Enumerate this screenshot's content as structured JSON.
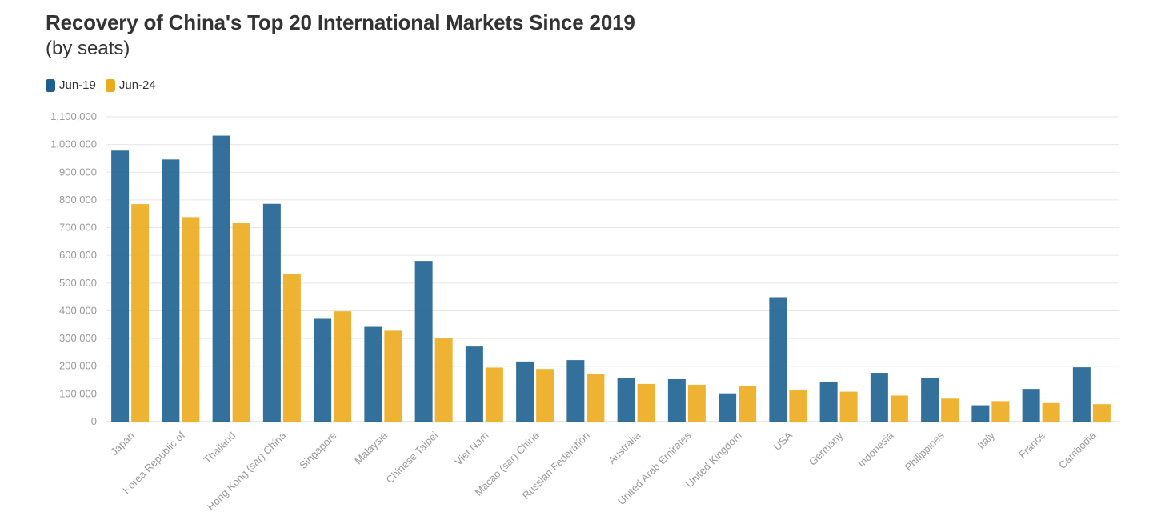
{
  "header": {
    "title": "Recovery of China's Top 20 International Markets Since 2019",
    "subtitle": "(by seats)"
  },
  "chart_data": {
    "type": "bar",
    "title": "Recovery of China's Top 20 International Markets Since 2019",
    "subtitle": "(by seats)",
    "xlabel": "",
    "ylabel": "",
    "ylim": [
      0,
      1100000
    ],
    "yticks": [
      0,
      100000,
      200000,
      300000,
      400000,
      500000,
      600000,
      700000,
      800000,
      900000,
      1000000,
      1100000
    ],
    "ytick_labels": [
      "0",
      "100,000",
      "200,000",
      "300,000",
      "400,000",
      "500,000",
      "600,000",
      "700,000",
      "800,000",
      "900,000",
      "1,000,000",
      "1,100,000"
    ],
    "grid": true,
    "legend_position": "top-left",
    "categories": [
      "Japan",
      "Korea Republic of",
      "Thailand",
      "Hong Kong (sar) China",
      "Singapore",
      "Malaysia",
      "Chinese Taipei",
      "Viet Nam",
      "Macao (sar) China",
      "Russian Federation",
      "Australia",
      "United Arab Emirates",
      "United Kingdom",
      "USA",
      "Germany",
      "Indonesia",
      "Philippines",
      "Italy",
      "France",
      "Cambodia"
    ],
    "series": [
      {
        "name": "Jun-19",
        "color": "#1d6090",
        "values": [
          978000,
          946000,
          1032000,
          786000,
          371000,
          342000,
          580000,
          271000,
          217000,
          222000,
          158000,
          153000,
          102000,
          449000,
          143000,
          176000,
          158000,
          59000,
          118000,
          196000
        ]
      },
      {
        "name": "Jun-24",
        "color": "#ecab1c",
        "values": [
          785000,
          738000,
          716000,
          532000,
          398000,
          328000,
          300000,
          195000,
          190000,
          172000,
          136000,
          133000,
          130000,
          114000,
          108000,
          94000,
          83000,
          74000,
          67000,
          63000
        ]
      }
    ]
  }
}
